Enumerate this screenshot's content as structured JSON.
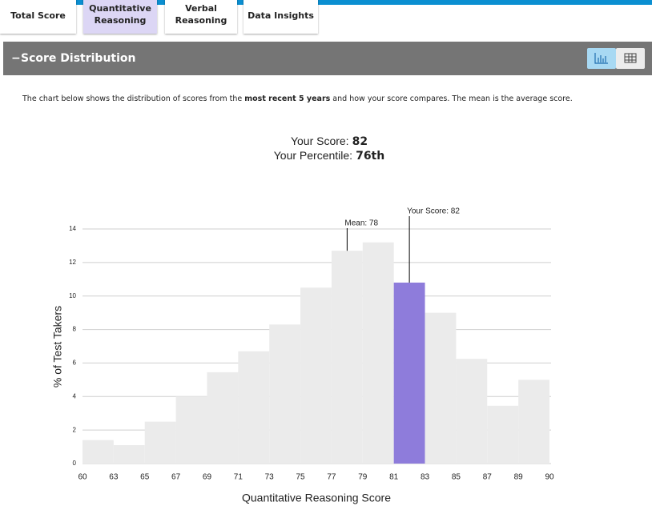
{
  "tabs": [
    {
      "lines": [
        "Total Score"
      ]
    },
    {
      "lines": [
        "Quantitative",
        "Reasoning"
      ]
    },
    {
      "lines": [
        "Verbal",
        "Reasoning"
      ]
    },
    {
      "lines": [
        "Data Insights"
      ]
    }
  ],
  "section_title": "Score Distribution",
  "description": [
    "The chart below shows the distribution of scores from the ",
    "most recent 5 years",
    " and how your score compares. The mean is the average score."
  ],
  "score_summary": {
    "score_label": "Your Score:",
    "score": 82,
    "percentile_label": "Your Percentile:",
    "percentile": "76th"
  },
  "chart_data": {
    "type": "histogram",
    "x_label": "Quantitative Reasoning Score",
    "y_label": "% of Test Takers",
    "bins": [
      60,
      63,
      65,
      67,
      69,
      71,
      73,
      75,
      77,
      79,
      81,
      83,
      85,
      87,
      89,
      90
    ],
    "values": [
      1.4,
      1.1,
      2.5,
      4.0,
      5.45,
      6.7,
      8.3,
      10.5,
      12.7,
      13.2,
      10.8,
      9.0,
      6.25,
      3.45,
      5.0
    ],
    "colors": [
      "#ebebeb",
      "#ebebeb",
      "#ebebeb",
      "#ebebeb",
      "#ebebeb",
      "#ebebeb",
      "#ebebeb",
      "#ebebeb",
      "#ebebeb",
      "#ebebeb",
      "#8e7cdb",
      "#ebebeb",
      "#ebebeb",
      "#ebebeb",
      "#ebebeb"
    ],
    "ylim": [
      0,
      14
    ],
    "yticks": [
      0,
      2,
      4,
      6,
      8,
      10,
      12,
      14
    ],
    "grid": true,
    "annotations": [
      {
        "label": "Mean: 78",
        "value": 78
      },
      {
        "label": "Your Score: 82",
        "value": 82
      }
    ]
  }
}
